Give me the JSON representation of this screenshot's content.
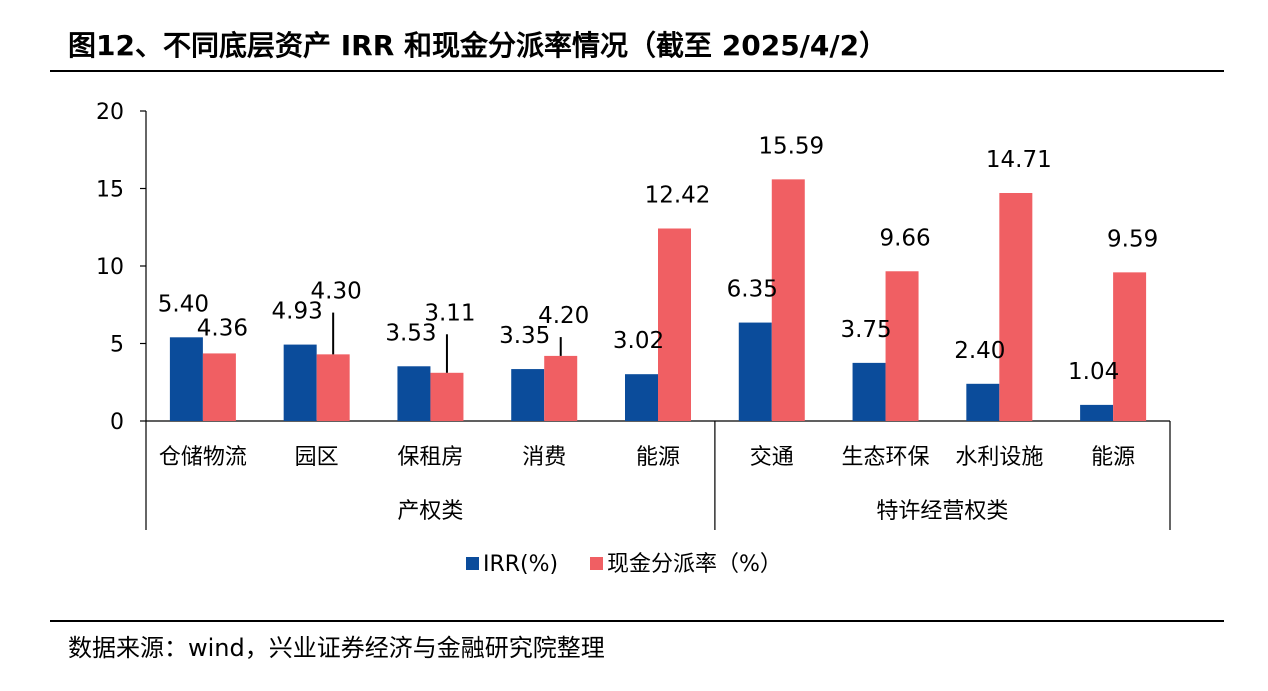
{
  "title": "图12、不同底层资产 IRR 和现金分派率情况（截至 2025/4/2）",
  "source": "数据来源：wind，兴业证券经济与金融研究院整理",
  "colors": {
    "irr": "#0b4c9b",
    "dist": "#f05f63",
    "axis": "#000000"
  },
  "chart_data": {
    "type": "bar",
    "categories": [
      "仓储物流",
      "园区",
      "保租房",
      "消费",
      "能源",
      "交通",
      "生态环保",
      "水利设施",
      "能源"
    ],
    "groups": [
      {
        "label": "产权类",
        "count": 5
      },
      {
        "label": "特许经营权类",
        "count": 4
      }
    ],
    "series": [
      {
        "name": "IRR(%)",
        "values": [
          5.4,
          4.93,
          3.53,
          3.35,
          3.02,
          6.35,
          3.75,
          2.4,
          1.04
        ]
      },
      {
        "name": "现金分派率（%）",
        "values": [
          4.36,
          4.3,
          3.11,
          4.2,
          12.42,
          15.59,
          9.66,
          14.71,
          9.59
        ]
      }
    ],
    "labels": [
      [
        "5.40",
        "4.93",
        "3.53",
        "3.35",
        "3.02",
        "6.35",
        "3.75",
        "2.40",
        "1.04"
      ],
      [
        "4.36",
        "4.30",
        "3.11",
        "4.20",
        "12.42",
        "15.59",
        "9.66",
        "14.71",
        "9.59"
      ]
    ],
    "yticks": [
      "0",
      "5",
      "10",
      "15",
      "20"
    ],
    "ylim": [
      0,
      20
    ],
    "legend_position": "bottom",
    "grid": false
  }
}
